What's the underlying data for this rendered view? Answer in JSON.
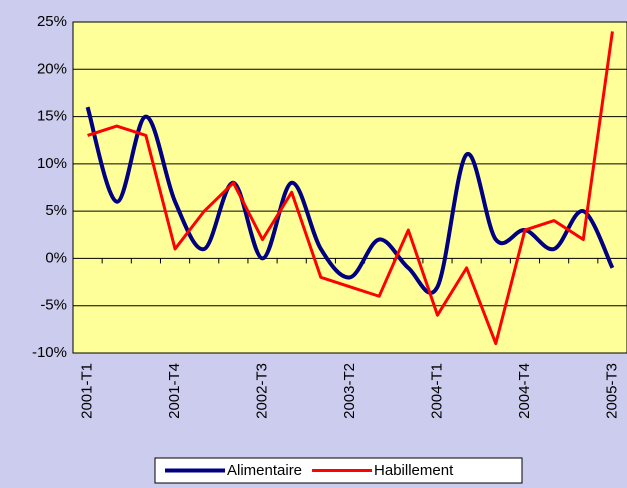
{
  "chart_data": {
    "type": "line",
    "categories": [
      "2001-T1",
      null,
      null,
      "2001-T4",
      null,
      null,
      "2002-T3",
      null,
      null,
      "2003-T2",
      null,
      null,
      "2004-T1",
      null,
      null,
      "2004-T4",
      null,
      null,
      "2005-T3"
    ],
    "series": [
      {
        "name": "Alimentaire",
        "color": "#000080",
        "smooth": true,
        "values": [
          16,
          6,
          15,
          6,
          1,
          8,
          0,
          8,
          1,
          -2,
          2,
          -1,
          -3,
          11,
          2,
          3,
          1,
          5,
          -1
        ]
      },
      {
        "name": "Habillement",
        "color": "#ff0000",
        "smooth": false,
        "values": [
          13,
          14,
          13,
          1,
          5,
          8,
          2,
          7,
          -2,
          -3,
          -4,
          3,
          -6,
          -1,
          -9,
          3,
          4,
          2,
          24
        ]
      }
    ],
    "ylim": [
      -10,
      25
    ],
    "yticks": [
      {
        "value": -10,
        "label": "-10%"
      },
      {
        "value": -5,
        "label": "-5%"
      },
      {
        "value": 0,
        "label": "0%"
      },
      {
        "value": 5,
        "label": "5%"
      },
      {
        "value": 10,
        "label": "10%"
      },
      {
        "value": 15,
        "label": "15%"
      },
      {
        "value": 20,
        "label": "20%"
      },
      {
        "value": 25,
        "label": "25%"
      }
    ],
    "grid": true,
    "legend": "bottom",
    "plot_background": "#ffff99"
  }
}
